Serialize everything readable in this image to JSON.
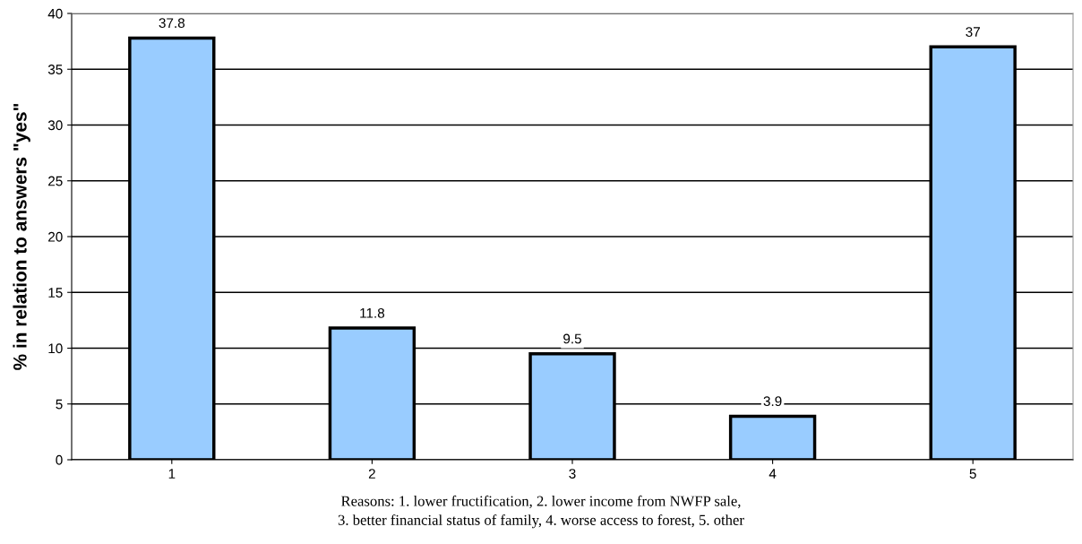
{
  "chart_data": {
    "type": "bar",
    "categories": [
      "1",
      "2",
      "3",
      "4",
      "5"
    ],
    "values": [
      37.8,
      11.8,
      9.5,
      3.9,
      37
    ],
    "color": "#99ccff",
    "ylabel": "% in relation to answers \"yes\"",
    "ylim": [
      0,
      40
    ],
    "yticks": [
      0,
      5,
      10,
      15,
      20,
      25,
      30,
      35,
      40
    ],
    "grid": "y",
    "data_labels": true,
    "annotations": [
      "Reasons: 1. lower fructification, 2. lower income from NWFP sale,\n3. better financial status of family, 4. worse access to forest, 5. other"
    ]
  }
}
